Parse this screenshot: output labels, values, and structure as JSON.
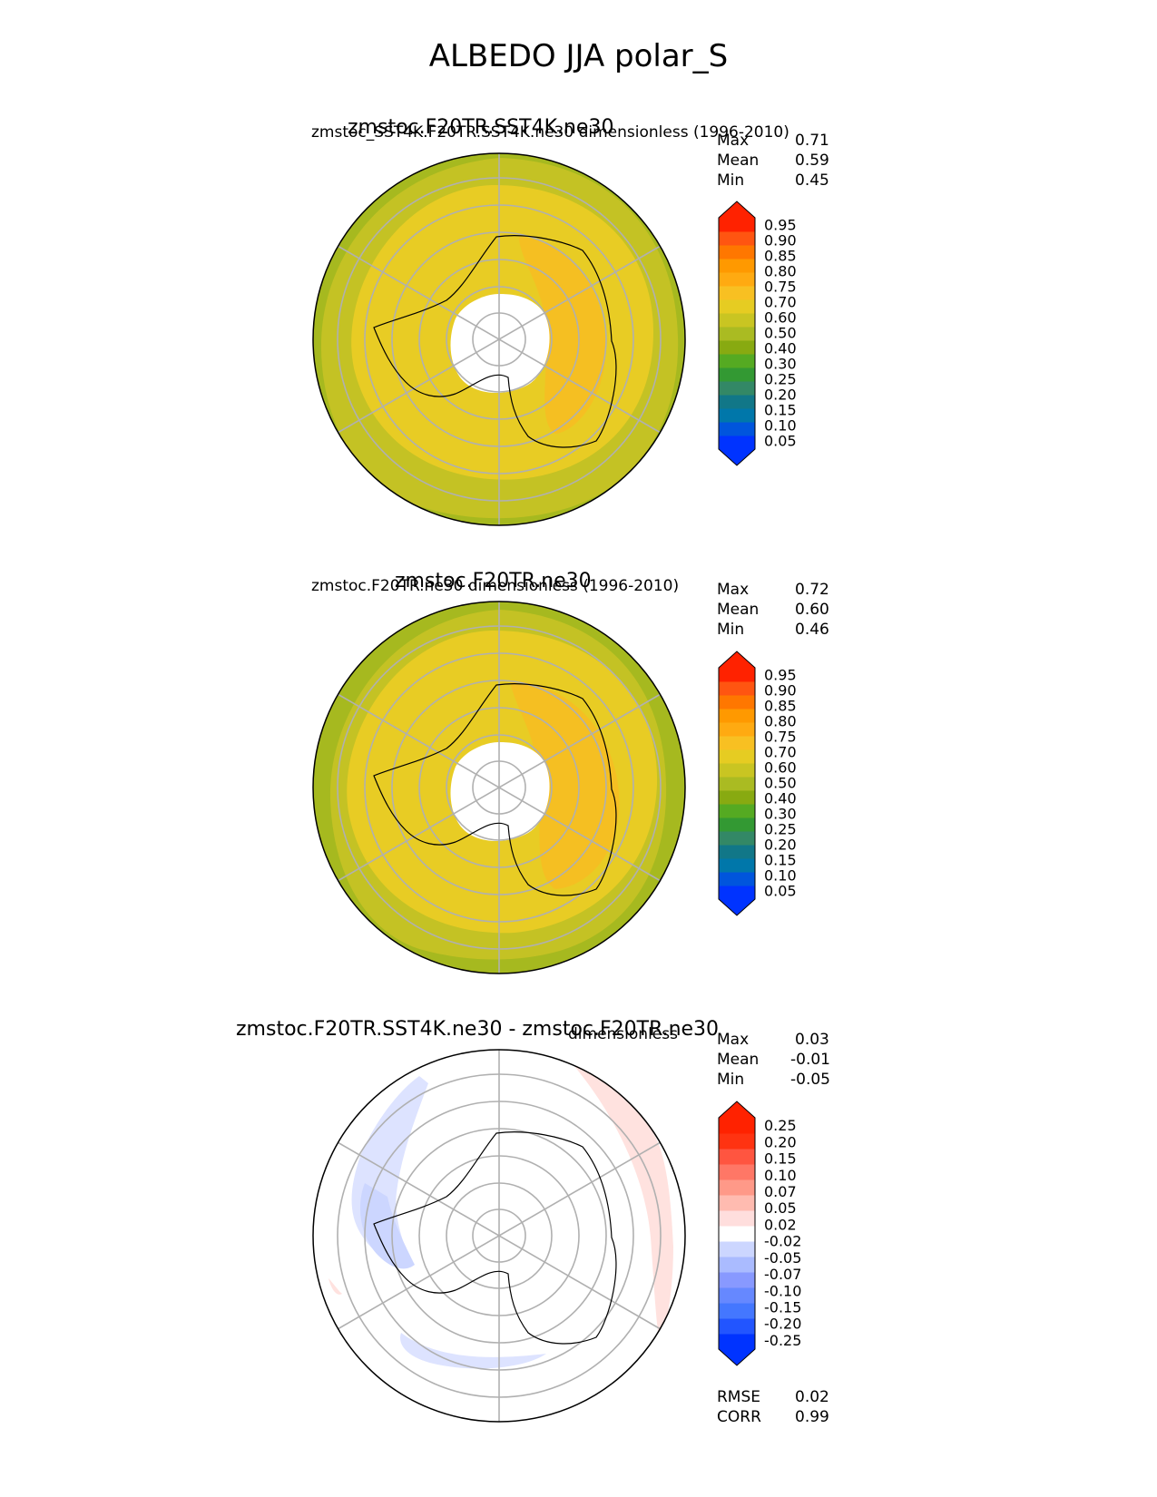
{
  "suptitle": "ALBEDO JJA polar_S",
  "panels": [
    {
      "title": "zmstoc.F20TR.SST4K.ne30",
      "subtitle": "zmstoc_SST4K.F20TR.SST4K.ne30 dimensionless (1996-2010)",
      "stats": [
        {
          "label": "Max",
          "value": "0.71"
        },
        {
          "label": "Mean",
          "value": "0.59"
        },
        {
          "label": "Min",
          "value": "0.45"
        }
      ],
      "colorbar_ticks": [
        "0.95",
        "0.90",
        "0.85",
        "0.80",
        "0.75",
        "0.70",
        "0.60",
        "0.50",
        "0.40",
        "0.30",
        "0.25",
        "0.20",
        "0.15",
        "0.10",
        "0.05"
      ]
    },
    {
      "title": "zmstoc.F20TR.ne30",
      "subtitle": "zmstoc.F20TR.ne30 dimensionless (1996-2010)",
      "stats": [
        {
          "label": "Max",
          "value": "0.72"
        },
        {
          "label": "Mean",
          "value": "0.60"
        },
        {
          "label": "Min",
          "value": "0.46"
        }
      ],
      "colorbar_ticks": [
        "0.95",
        "0.90",
        "0.85",
        "0.80",
        "0.75",
        "0.70",
        "0.60",
        "0.50",
        "0.40",
        "0.30",
        "0.25",
        "0.20",
        "0.15",
        "0.10",
        "0.05"
      ]
    },
    {
      "title": "zmstoc.F20TR.SST4K.ne30 - zmstoc.F20TR.ne30",
      "subtitle": "dimensionless",
      "stats": [
        {
          "label": "Max",
          "value": "0.03"
        },
        {
          "label": "Mean",
          "value": "-0.01"
        },
        {
          "label": "Min",
          "value": "-0.05"
        }
      ],
      "colorbar_ticks": [
        "0.25",
        "0.20",
        "0.15",
        "0.10",
        "0.07",
        "0.05",
        "0.02",
        "-0.02",
        "-0.05",
        "-0.07",
        "-0.10",
        "-0.15",
        "-0.20",
        "-0.25"
      ],
      "extra_stats": [
        {
          "label": "RMSE",
          "value": "0.02"
        },
        {
          "label": "CORR",
          "value": "0.99"
        }
      ]
    }
  ],
  "colors": {
    "seq": [
      "#0033ff",
      "#0055dd",
      "#0077aa",
      "#117788",
      "#338866",
      "#339933",
      "#55aa22",
      "#88aa11",
      "#aabb22",
      "#c9c522",
      "#e6cc22",
      "#f8c022",
      "#ffaa11",
      "#ff9900",
      "#ff7700",
      "#ff5511",
      "#ff2200"
    ],
    "div": [
      "#0033ff",
      "#2255ff",
      "#4477ff",
      "#6688ff",
      "#8899ff",
      "#aabbff",
      "#ccd6ff",
      "#ffffff",
      "#ffdedd",
      "#ffbbb0",
      "#ff9988",
      "#ff7766",
      "#ff5540",
      "#ff3311",
      "#ff2200"
    ]
  }
}
